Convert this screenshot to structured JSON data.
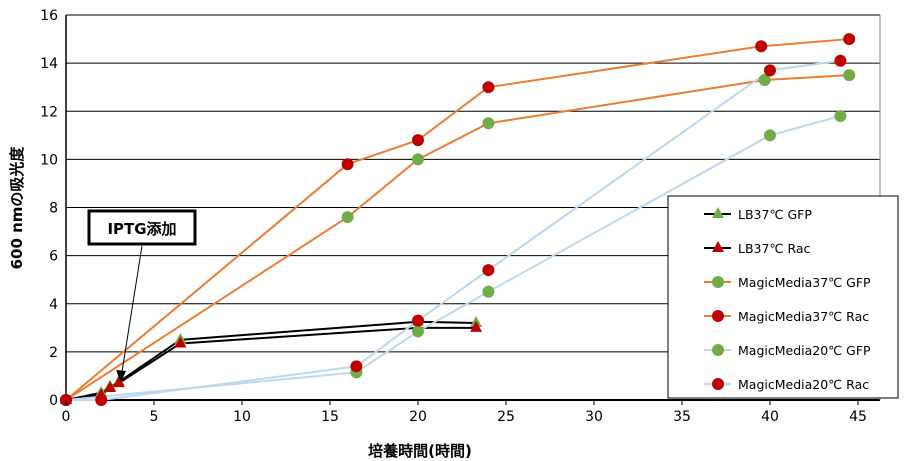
{
  "chart_data": {
    "type": "line",
    "title": "",
    "xlabel": "培養時間(時間)",
    "ylabel": "600 nmの吸光度",
    "xlim": [
      0,
      45
    ],
    "ylim": [
      0,
      16
    ],
    "xticks": [
      "0",
      "5",
      "10",
      "15",
      "20",
      "25",
      "30",
      "35",
      "40",
      "45"
    ],
    "yticks": [
      "0",
      "2",
      "4",
      "6",
      "8",
      "10",
      "12",
      "14",
      "16"
    ],
    "grid": "horizontal",
    "legend_position": "right",
    "annotation": {
      "text": "IPTG添加",
      "points_to": [
        3,
        0.75
      ]
    },
    "series": [
      {
        "name": "LB37℃ GFP",
        "line": "#000000",
        "marker": "triangle",
        "marker_color": "#70ad47",
        "x": [
          0,
          2,
          2.5,
          3,
          6.5,
          20,
          23.3
        ],
        "y": [
          0,
          0.3,
          0.55,
          0.75,
          2.5,
          3.25,
          3.2
        ]
      },
      {
        "name": "LB37℃ Rac",
        "line": "#000000",
        "marker": "triangle",
        "marker_color": "#c00000",
        "x": [
          0,
          2,
          2.5,
          3,
          6.5,
          20,
          23.3
        ],
        "y": [
          0,
          0.2,
          0.5,
          0.7,
          2.35,
          3.0,
          3.0
        ]
      },
      {
        "name": "MagicMedia37℃ GFP",
        "line": "#ed7d31",
        "marker": "circle",
        "marker_color": "#70ad47",
        "x": [
          0,
          16,
          20,
          24,
          39.7,
          44.5
        ],
        "y": [
          0,
          7.6,
          10,
          11.5,
          13.3,
          13.5
        ]
      },
      {
        "name": "MagicMedia37℃ Rac",
        "line": "#ed7d31",
        "marker": "circle",
        "marker_color": "#c00000",
        "x": [
          0,
          16,
          20,
          24,
          39.5,
          44.5
        ],
        "y": [
          0,
          9.8,
          10.8,
          13,
          14.7,
          15
        ]
      },
      {
        "name": "MagicMedia20℃ GFP",
        "line": "#bdd7ee",
        "marker": "circle",
        "marker_color": "#70ad47",
        "x": [
          0,
          16.5,
          20,
          24,
          40,
          44
        ],
        "y": [
          0,
          1.15,
          2.85,
          4.5,
          11,
          11.8
        ]
      },
      {
        "name": "MagicMedia20℃ Rac",
        "line": "#bdd7ee",
        "marker": "circle",
        "marker_color": "#c00000",
        "x": [
          0,
          2,
          16.5,
          20,
          24,
          40,
          44
        ],
        "y": [
          0,
          0,
          1.4,
          3.3,
          5.4,
          13.7,
          14.1
        ]
      }
    ]
  }
}
